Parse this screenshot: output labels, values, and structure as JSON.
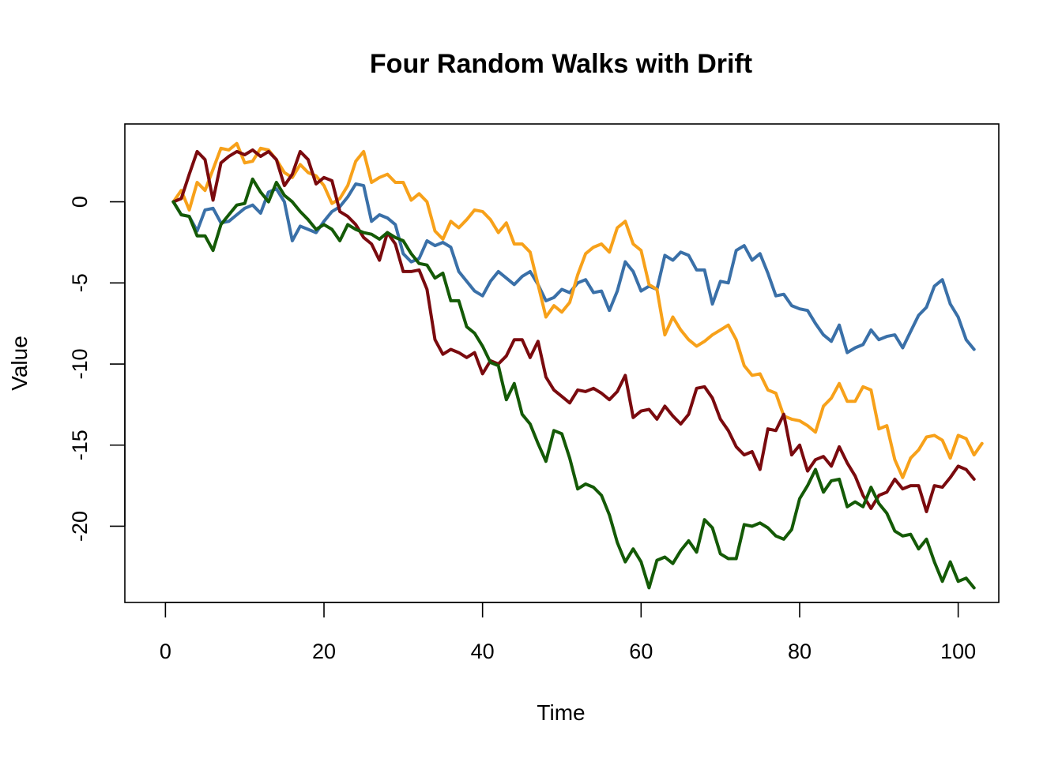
{
  "chart_data": {
    "type": "line",
    "title": "Four Random Walks with Drift",
    "xlabel": "Time",
    "ylabel": "Value",
    "xlim": [
      -5.12,
      105.12
    ],
    "ylim": [
      -24.7,
      4.8
    ],
    "xticks": [
      0,
      20,
      40,
      60,
      80,
      100
    ],
    "yticks": [
      0,
      -5,
      -10,
      -15,
      -20
    ],
    "grid": false,
    "legend": "none",
    "series": [
      {
        "color": "#3A70A8",
        "values": [
          0,
          -0.8,
          -0.9,
          -1.8,
          -0.5,
          -0.4,
          -1.3,
          -1.2,
          -0.8,
          -0.4,
          -0.2,
          -0.7,
          0.6,
          0.8,
          0,
          -2.4,
          -1.5,
          -1.7,
          -1.9,
          -1.2,
          -0.6,
          -0.3,
          0.3,
          1.1,
          1,
          -1.2,
          -0.8,
          -1,
          -1.4,
          -3.2,
          -3.7,
          -3.5,
          -2.4,
          -2.7,
          -2.5,
          -2.8,
          -4.3,
          -4.9,
          -5.5,
          -5.8,
          -4.9,
          -4.3,
          -4.7,
          -5.1,
          -4.6,
          -4.3,
          -5.1,
          -6.1,
          -5.9,
          -5.4,
          -5.6,
          -5,
          -4.8,
          -5.6,
          -5.5,
          -6.7,
          -5.5,
          -3.7,
          -4.3,
          -5.5,
          -5.2,
          -5.4,
          -3.3,
          -3.6,
          -3.1,
          -3.3,
          -4.2,
          -4.2,
          -6.3,
          -4.9,
          -5,
          -3,
          -2.7,
          -3.6,
          -3.2,
          -4.4,
          -5.8,
          -5.7,
          -6.4,
          -6.6,
          -6.7,
          -7.5,
          -8.2,
          -8.6,
          -7.6,
          -9.3,
          -9,
          -8.8,
          -7.9,
          -8.5,
          -8.3,
          -8.2,
          -9,
          -8,
          -7,
          -6.5,
          -5.2,
          -4.8,
          -6.3,
          -7.1,
          -8.5,
          -9.1
        ]
      },
      {
        "color": "#F7A11A",
        "values": [
          0,
          0.7,
          -0.5,
          1.2,
          0.7,
          2,
          3.3,
          3.2,
          3.6,
          2.4,
          2.5,
          3.3,
          3.2,
          2.6,
          1.8,
          1.5,
          2.3,
          1.8,
          1.6,
          1,
          -0.1,
          0.2,
          1,
          2.5,
          3.1,
          1.2,
          1.5,
          1.7,
          1.2,
          1.2,
          0.1,
          0.5,
          0,
          -1.8,
          -2.3,
          -1.2,
          -1.6,
          -1.1,
          -0.5,
          -0.6,
          -1.1,
          -1.9,
          -1.3,
          -2.6,
          -2.6,
          -3.1,
          -5.1,
          -7.1,
          -6.4,
          -6.8,
          -6.2,
          -4.5,
          -3.2,
          -2.8,
          -2.6,
          -3.1,
          -1.6,
          -1.2,
          -2.6,
          -3,
          -5.1,
          -5.4,
          -8.2,
          -7.1,
          -7.9,
          -8.5,
          -8.9,
          -8.6,
          -8.2,
          -7.9,
          -7.6,
          -8.5,
          -10.1,
          -10.7,
          -10.6,
          -11.6,
          -11.8,
          -13.2,
          -13.4,
          -13.5,
          -13.8,
          -14.2,
          -12.6,
          -12.1,
          -11.2,
          -12.3,
          -12.3,
          -11.4,
          -11.6,
          -14,
          -13.8,
          -15.9,
          -17,
          -15.8,
          -15.3,
          -14.5,
          -14.4,
          -14.7,
          -15.8,
          -14.4,
          -14.6,
          -15.6,
          -14.9
        ]
      },
      {
        "color": "#7A0A0E",
        "values": [
          0,
          0.2,
          1.7,
          3.1,
          2.6,
          0.1,
          2.4,
          2.8,
          3.1,
          2.9,
          3.2,
          2.8,
          3.1,
          2.6,
          1,
          1.7,
          3.1,
          2.6,
          1.1,
          1.5,
          1.3,
          -0.6,
          -0.9,
          -1.4,
          -2.2,
          -2.6,
          -3.6,
          -1.9,
          -2.6,
          -4.3,
          -4.3,
          -4.2,
          -5.4,
          -8.5,
          -9.4,
          -9.1,
          -9.3,
          -9.6,
          -9.3,
          -10.6,
          -9.8,
          -10,
          -9.5,
          -8.5,
          -8.5,
          -9.6,
          -8.6,
          -10.8,
          -11.6,
          -12,
          -12.4,
          -11.6,
          -11.7,
          -11.5,
          -11.8,
          -12.2,
          -11.7,
          -10.7,
          -13.3,
          -12.9,
          -12.8,
          -13.4,
          -12.6,
          -13.2,
          -13.7,
          -13.1,
          -11.5,
          -11.4,
          -12.1,
          -13.4,
          -14.1,
          -15.1,
          -15.6,
          -15.4,
          -16.5,
          -14,
          -14.1,
          -13.1,
          -15.6,
          -15,
          -16.6,
          -15.9,
          -15.7,
          -16.3,
          -15.1,
          -16.1,
          -16.9,
          -18.1,
          -18.9,
          -18.1,
          -17.9,
          -17.1,
          -17.7,
          -17.5,
          -17.5,
          -19.1,
          -17.5,
          -17.6,
          -17,
          -16.3,
          -16.5,
          -17.1
        ]
      },
      {
        "color": "#145A06",
        "values": [
          0,
          -0.8,
          -0.9,
          -2.1,
          -2.1,
          -3,
          -1.4,
          -0.8,
          -0.2,
          -0.1,
          1.4,
          0.6,
          0,
          1.2,
          0.4,
          0,
          -0.6,
          -1.1,
          -1.7,
          -1.4,
          -1.7,
          -2.4,
          -1.4,
          -1.7,
          -1.9,
          -2,
          -2.3,
          -1.9,
          -2.2,
          -2.4,
          -3.2,
          -3.8,
          -3.9,
          -4.7,
          -4.4,
          -6.1,
          -6.1,
          -7.7,
          -8.1,
          -8.9,
          -9.9,
          -10.1,
          -12.2,
          -11.2,
          -13.1,
          -13.7,
          -14.9,
          -16,
          -14.1,
          -14.3,
          -15.8,
          -17.7,
          -17.4,
          -17.6,
          -18.1,
          -19.3,
          -21,
          -22.2,
          -21.4,
          -22.2,
          -23.8,
          -22.1,
          -21.9,
          -22.3,
          -21.5,
          -20.9,
          -21.6,
          -19.6,
          -20.1,
          -21.7,
          -22,
          -22,
          -19.9,
          -20,
          -19.8,
          -20.1,
          -20.6,
          -20.8,
          -20.2,
          -18.3,
          -17.5,
          -16.5,
          -17.9,
          -17.2,
          -17.1,
          -18.8,
          -18.5,
          -18.8,
          -17.6,
          -18.6,
          -19.2,
          -20.3,
          -20.6,
          -20.5,
          -21.4,
          -20.8,
          -22.2,
          -23.4,
          -22.2,
          -23.4,
          -23.2,
          -23.8
        ]
      }
    ]
  }
}
